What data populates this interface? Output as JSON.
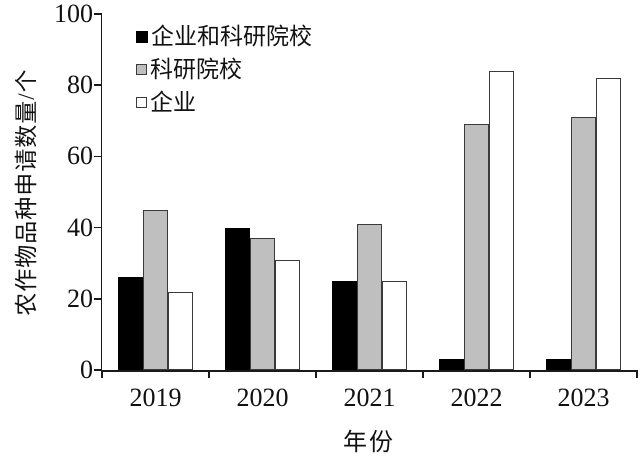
{
  "chart_data": {
    "type": "bar",
    "title": "",
    "xlabel": "年份",
    "ylabel": "农作物品种申请数量/个",
    "categories": [
      "2019",
      "2020",
      "2021",
      "2022",
      "2023"
    ],
    "series": [
      {
        "name": "企业和科研院校",
        "fill": "#000000",
        "border": "#000000",
        "values": [
          26,
          40,
          25,
          3,
          3
        ]
      },
      {
        "name": "科研院校",
        "fill": "#bfbfbf",
        "border": "#3b3b3b",
        "values": [
          45,
          37,
          41,
          69,
          71
        ]
      },
      {
        "name": "企业",
        "fill": "#ffffff",
        "border": "#3b3b3b",
        "values": [
          22,
          31,
          25,
          84,
          82
        ]
      }
    ],
    "ylim": [
      0,
      100
    ],
    "yticks": [
      0,
      20,
      40,
      60,
      80,
      100
    ],
    "legend_position": "top-left-inside",
    "grid": false,
    "axis_color": "#1a1a1a"
  }
}
